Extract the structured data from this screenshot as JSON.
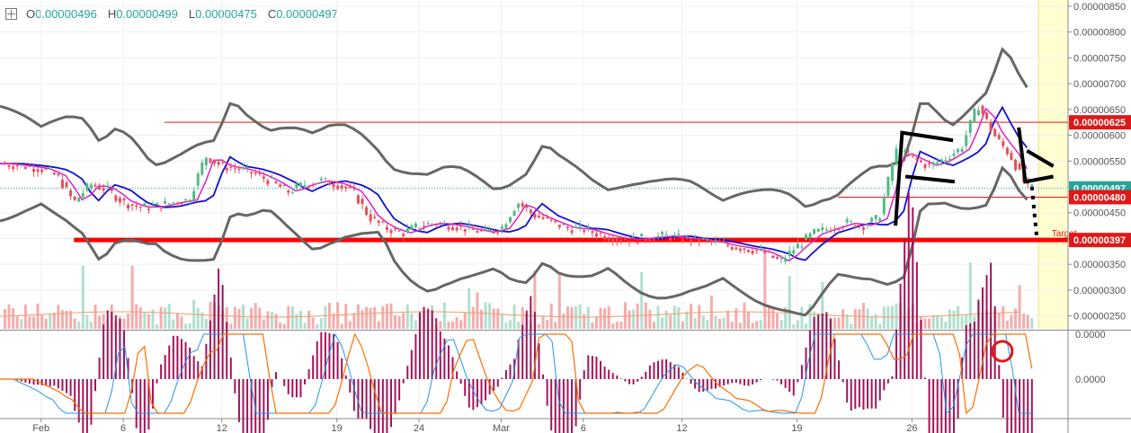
{
  "header": {
    "o_key": "O",
    "o_val": "0.00000496",
    "h_key": "H",
    "h_val": "0.00000499",
    "l_key": "L",
    "l_val": "0.00000475",
    "c_key": "C",
    "c_val": "0.00000497"
  },
  "chart_data": [
    {
      "type": "candlestick",
      "y_ticks": [
        "0.00000850",
        "0.00000800",
        "0.00000750",
        "0.00000700",
        "0.00000650",
        "0.00000600",
        "0.00000550",
        "0.00000500",
        "0.00000450",
        "0.00000400",
        "0.00000350",
        "0.00000300",
        "0.00000250"
      ],
      "ylim": [
        2.25e-06,
        8.62e-06
      ],
      "x_ticks": [
        {
          "label": "Feb",
          "day": 0
        },
        {
          "label": "6",
          "day": 5
        },
        {
          "label": "12",
          "day": 11
        },
        {
          "label": "19",
          "day": 18
        },
        {
          "label": "24",
          "day": 23
        },
        {
          "label": "Mar",
          "day": 28
        },
        {
          "label": "6",
          "day": 33
        },
        {
          "label": "12",
          "day": 39
        },
        {
          "label": "19",
          "day": 46
        },
        {
          "label": "26",
          "day": 53
        }
      ],
      "xlim": [
        -2.5,
        62.5
      ],
      "price_path": [
        [
          -2.5,
          5.45e-06
        ],
        [
          -1,
          5.4e-06
        ],
        [
          0,
          5.35e-06
        ],
        [
          1,
          5.2e-06
        ],
        [
          2,
          4.7e-06
        ],
        [
          3,
          5.05e-06
        ],
        [
          4,
          4.95e-06
        ],
        [
          5,
          4.7e-06
        ],
        [
          6,
          4.6e-06
        ],
        [
          7,
          4.62e-06
        ],
        [
          8,
          4.7e-06
        ],
        [
          9,
          4.75e-06
        ],
        [
          10,
          5.6e-06
        ],
        [
          11,
          5.4e-06
        ],
        [
          12,
          5.35e-06
        ],
        [
          13,
          5.25e-06
        ],
        [
          14,
          5.1e-06
        ],
        [
          15,
          4.9e-06
        ],
        [
          16,
          5.05e-06
        ],
        [
          17,
          5.12e-06
        ],
        [
          18,
          5.05e-06
        ],
        [
          19,
          4.9e-06
        ],
        [
          20,
          4.4e-06
        ],
        [
          21,
          4.2e-06
        ],
        [
          22,
          4.1e-06
        ],
        [
          23,
          4.25e-06
        ],
        [
          24,
          4.3e-06
        ],
        [
          25,
          4.25e-06
        ],
        [
          26,
          4.18e-06
        ],
        [
          27,
          4.12e-06
        ],
        [
          28,
          4.2e-06
        ],
        [
          29,
          4.7e-06
        ],
        [
          30,
          4.45e-06
        ],
        [
          31,
          4.32e-06
        ],
        [
          32,
          4.2e-06
        ],
        [
          33,
          4.18e-06
        ],
        [
          34,
          4.08e-06
        ],
        [
          35,
          4e-06
        ],
        [
          36,
          3.98e-06
        ],
        [
          37,
          4.02e-06
        ],
        [
          38,
          4.05e-06
        ],
        [
          39,
          4e-06
        ],
        [
          40,
          3.98e-06
        ],
        [
          41,
          3.92e-06
        ],
        [
          42,
          3.85e-06
        ],
        [
          43,
          3.8e-06
        ],
        [
          44,
          3.72e-06
        ],
        [
          45,
          3.55e-06
        ],
        [
          46,
          3.85e-06
        ],
        [
          47,
          4.1e-06
        ],
        [
          48,
          4.2e-06
        ],
        [
          49,
          4.3e-06
        ],
        [
          50,
          4.25e-06
        ],
        [
          51,
          4.4e-06
        ],
        [
          52,
          5.7e-06
        ],
        [
          53,
          5.55e-06
        ],
        [
          54,
          5.4e-06
        ],
        [
          55,
          5.55e-06
        ],
        [
          56,
          5.75e-06
        ],
        [
          57,
          6.6e-06
        ],
        [
          58,
          6e-06
        ],
        [
          59,
          5.6e-06
        ],
        [
          60,
          4.97e-06
        ]
      ],
      "horizontal_lines": [
        {
          "label": "0.00000625",
          "price": 6.25e-06,
          "color": "#e01818",
          "from_day": 7.5,
          "width": 1,
          "tag_color": "#e01818"
        },
        {
          "label": "0.00000497",
          "price": 4.97e-06,
          "color": "#26a69a",
          "from_day": -2.5,
          "width": 1,
          "dashed": true,
          "tag_color": "#26a69a"
        },
        {
          "label": "0.00000480",
          "price": 4.8e-06,
          "color": "#e01818",
          "from_day": 48.5,
          "width": 1,
          "tag_color": "#e01818"
        },
        {
          "label": "0.00000397",
          "price": 3.97e-06,
          "color": "#ff0000",
          "from_day": 2,
          "width": 5,
          "tag_color": "#e01818"
        }
      ],
      "annotation": {
        "text": "Target",
        "day": 61.5,
        "price": 4.04e-06
      },
      "projection_zone": {
        "from_day": 60.7,
        "color": "#fefed0"
      }
    },
    {
      "type": "macd",
      "y_ticks": [
        "0.0000",
        "0.0000"
      ],
      "series": [
        {
          "name": "MACD",
          "color": "#2196f3"
        },
        {
          "name": "Signal",
          "color": "#ff6d00"
        },
        {
          "name": "Histogram",
          "color": "#a4145a"
        }
      ],
      "marker": {
        "shape": "circle",
        "day": 58.5,
        "color": "#e01818"
      }
    }
  ]
}
